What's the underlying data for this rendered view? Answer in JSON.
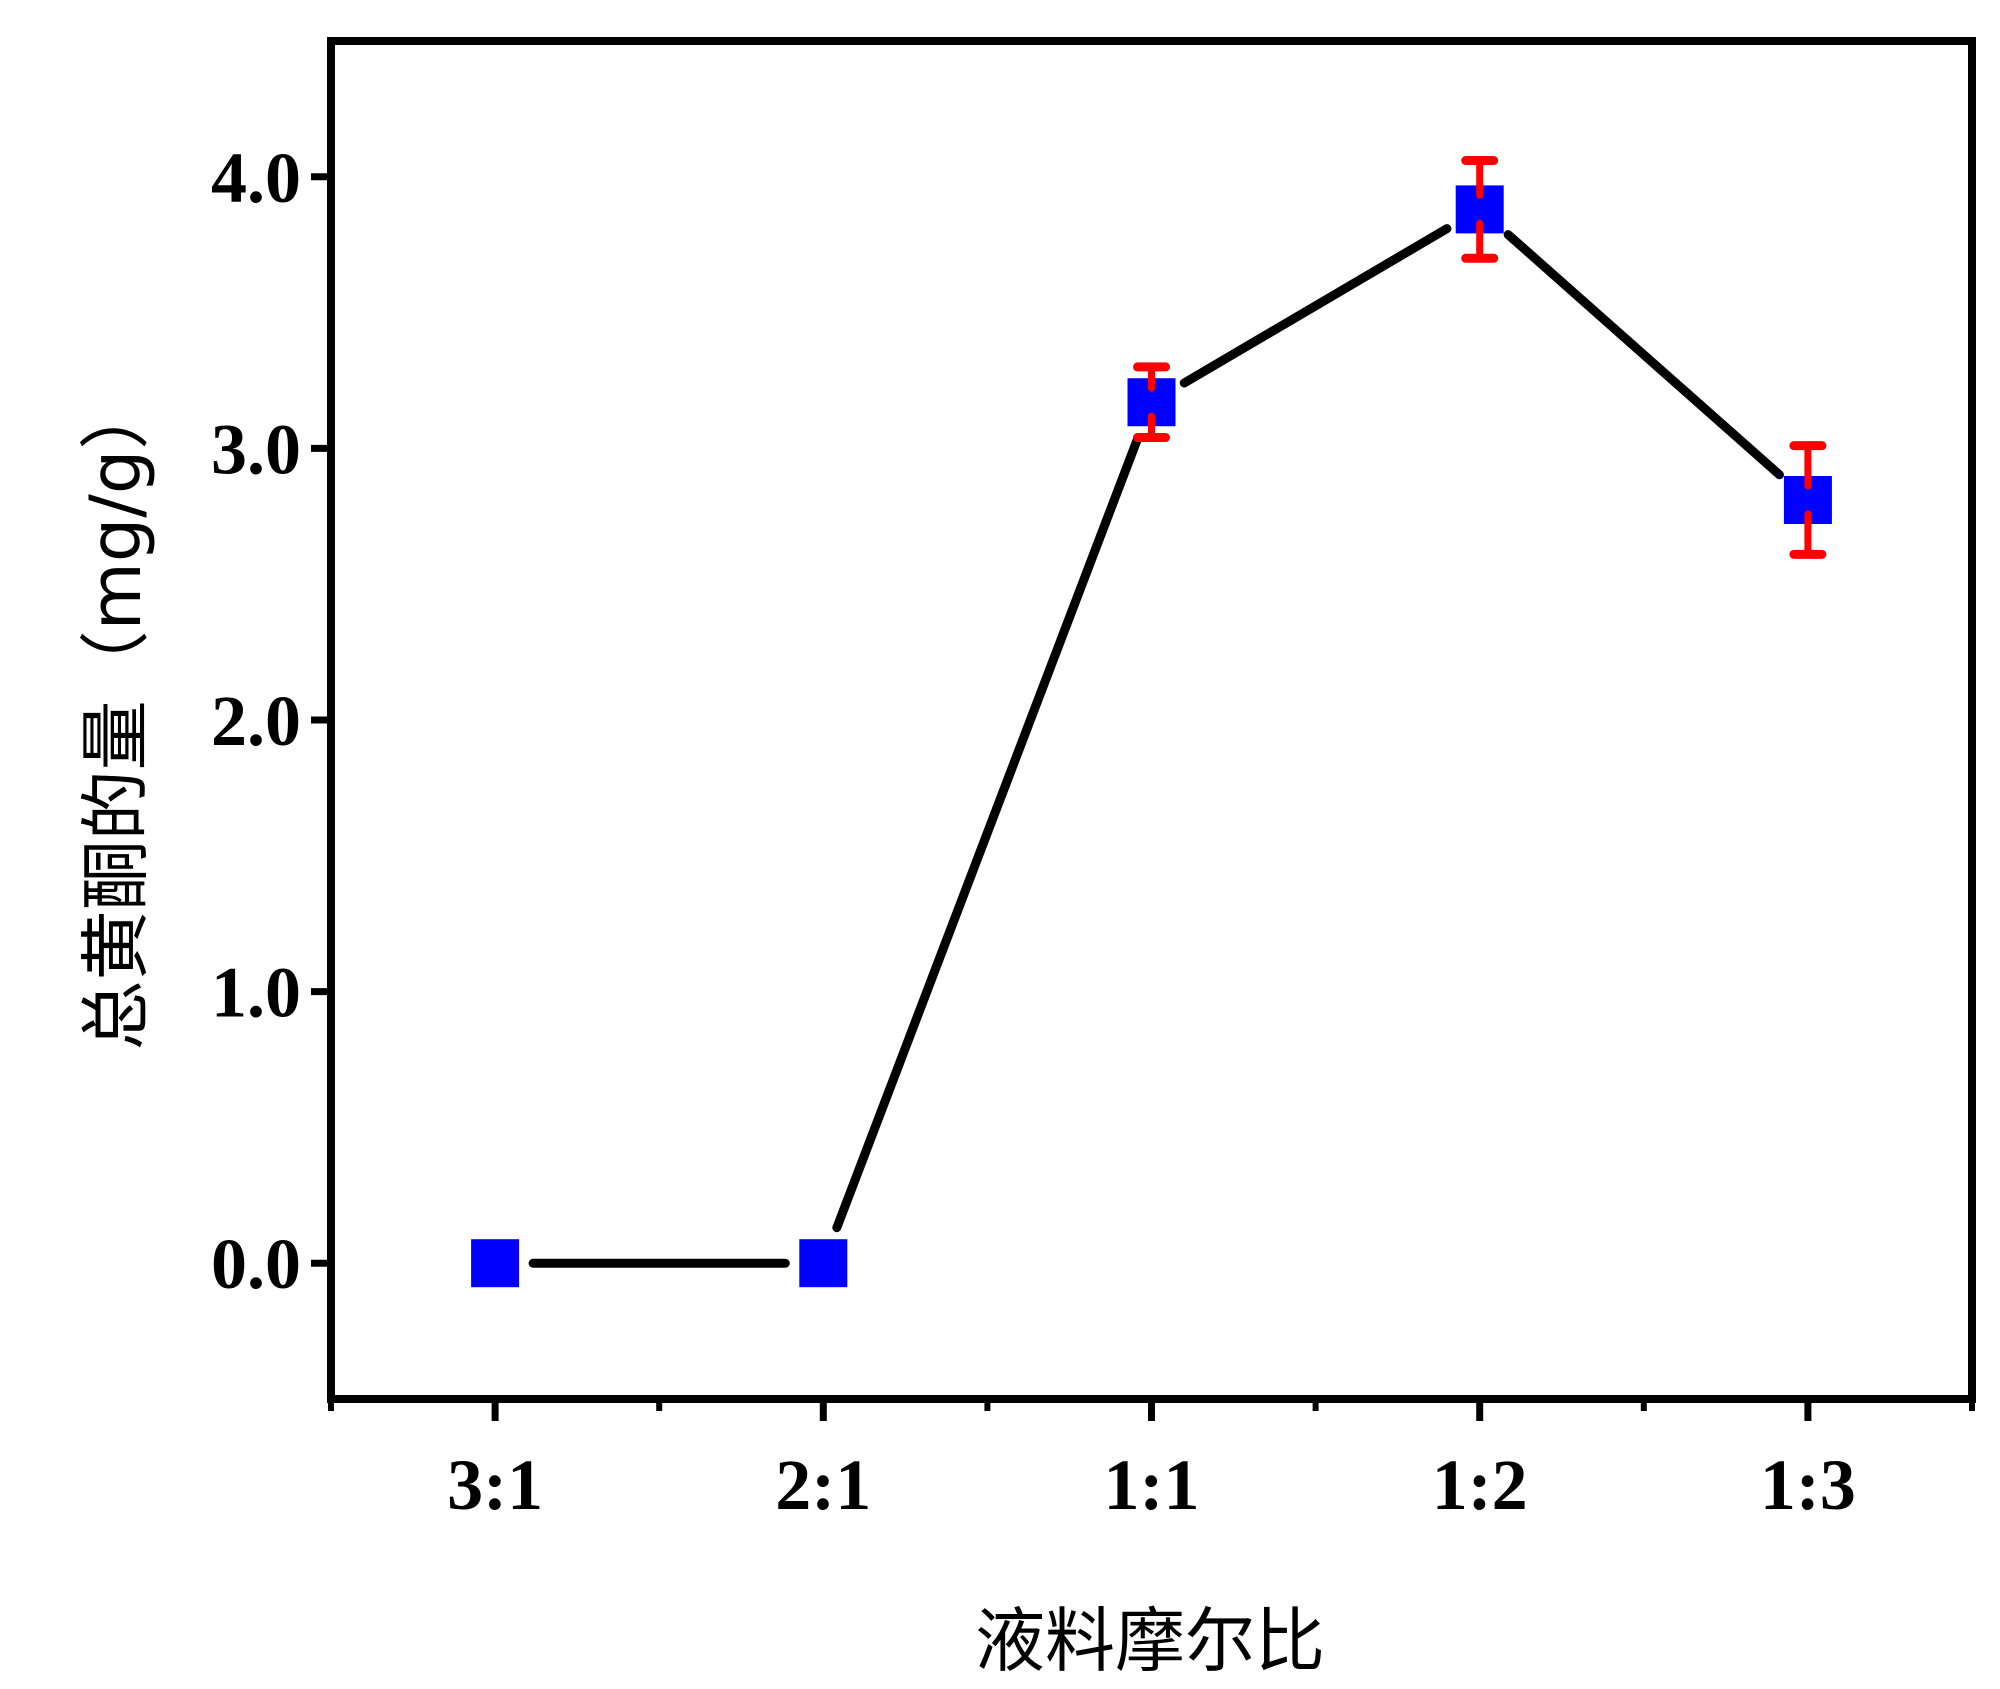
{
  "chart_data": {
    "type": "line",
    "title": "",
    "xlabel": "液料摩尔比",
    "ylabel": "总黄酮的量（mg/g）",
    "categories": [
      "3:1",
      "2:1",
      "1:1",
      "1:2",
      "1:3"
    ],
    "series": [
      {
        "values": [
          0.0,
          0.0,
          3.17,
          3.88,
          2.81
        ],
        "errors": [
          0,
          0,
          0.13,
          0.18,
          0.2
        ]
      }
    ],
    "ylim": [
      -0.5,
      4.5
    ],
    "yticks": [
      0.0,
      1.0,
      2.0,
      3.0,
      4.0
    ],
    "ytick_labels": [
      "0.0",
      "1.0",
      "2.0",
      "3.0",
      "4.0"
    ],
    "grid": false,
    "legend": "none",
    "colors": {
      "line": "#000000",
      "marker": "#0000ff",
      "error_bar": "#ff0000"
    }
  }
}
